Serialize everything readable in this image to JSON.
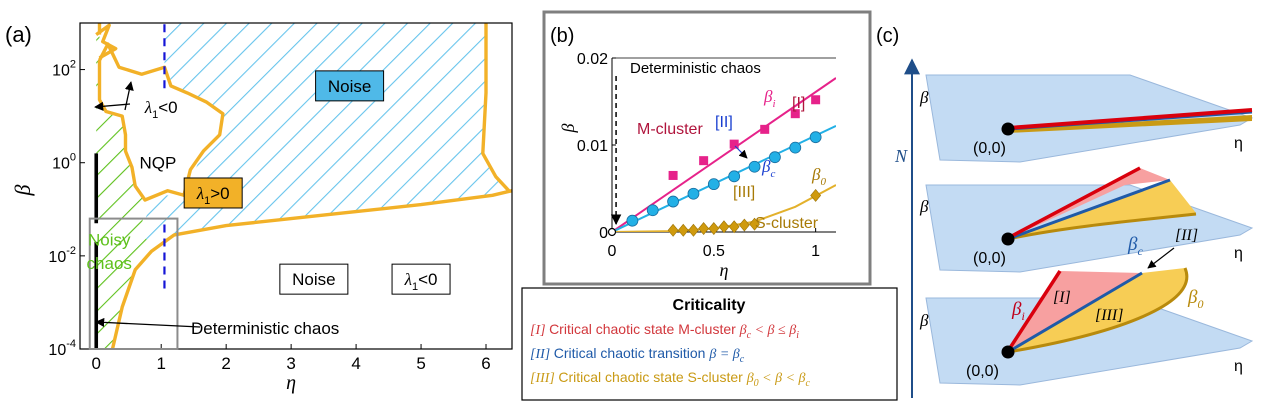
{
  "panel_labels": {
    "a": "(a)",
    "b": "(b)",
    "c": "(c)"
  },
  "colors": {
    "orange": "#f2b128",
    "hatch_green": "#5ec11c",
    "hatch_blue": "#67c4ec",
    "noise_box": "#4fb9e8",
    "lyap_box": "#f2b128",
    "dashed_blue": "#1515d6",
    "magenta": "#e6228a",
    "cyan": "#22b0e6",
    "gold": "#cf9a0e",
    "navy": "#1f5aa8",
    "red": "#d9000d",
    "pink": "#f59a9a",
    "yellow": "#f7cd55",
    "plane": "#c3dbf3",
    "plane_edge": "#9ab8dc",
    "dark_red_text": "#b0143c"
  },
  "chart_data": [
    {
      "id": "a",
      "type": "area",
      "title": "",
      "xlabel": "η",
      "ylabel": "β",
      "xlim": [
        -0.25,
        6.4
      ],
      "ylim_log10": [
        -4,
        3
      ],
      "xticks": [
        {
          "v": 0,
          "label": "0"
        },
        {
          "v": 1,
          "label": "1"
        },
        {
          "v": 2,
          "label": "2"
        },
        {
          "v": 3,
          "label": "3"
        },
        {
          "v": 4,
          "label": "4"
        },
        {
          "v": 5,
          "label": "5"
        },
        {
          "v": 6,
          "label": "6"
        }
      ],
      "yticks": [
        {
          "e": -4,
          "label": "10",
          "exp": "-4"
        },
        {
          "e": -2,
          "label": "10",
          "exp": "-2"
        },
        {
          "e": 0,
          "label": "10",
          "exp": "0"
        },
        {
          "e": 2,
          "label": "10",
          "exp": "2"
        }
      ],
      "deterministic_chaos_segments": [
        {
          "x": 0,
          "from_log": -4,
          "to_log": -1.7
        },
        {
          "x": 0,
          "from_log": -1.3,
          "to_log": 0.2
        }
      ],
      "dashed_line": {
        "x": 1.05,
        "segments": [
          [
            1.6,
            3.0
          ],
          [
            -2.7,
            -1.3
          ]
        ]
      },
      "noisy_chaos_box": {
        "x": [
          -0.1,
          1.25
        ],
        "log": [
          -4,
          -1.2
        ]
      },
      "boundary_curves": [
        {
          "name": "nqp-island",
          "points": [
            [
              0.05,
              2.2
            ],
            [
              0.18,
              2.55
            ],
            [
              0.35,
              2.05
            ],
            [
              0.7,
              1.9
            ],
            [
              1.05,
              2.05
            ],
            [
              1.15,
              1.65
            ],
            [
              1.4,
              1.5
            ],
            [
              1.7,
              1.3
            ],
            [
              1.95,
              1.05
            ],
            [
              1.9,
              0.6
            ],
            [
              1.65,
              0.25
            ],
            [
              1.45,
              -0.15
            ],
            [
              1.35,
              -0.7
            ],
            [
              1.1,
              -0.6
            ],
            [
              0.75,
              -0.8
            ],
            [
              0.6,
              -0.5
            ],
            [
              0.55,
              -0.1
            ],
            [
              0.45,
              0.25
            ],
            [
              0.45,
              0.6
            ],
            [
              0.4,
              1.0
            ],
            [
              0.15,
              1.1
            ],
            [
              0.05,
              1.35
            ],
            [
              0.05,
              1.7
            ],
            [
              0.05,
              2.2
            ]
          ]
        },
        {
          "name": "left-lobe",
          "points": [
            [
              0.0,
              2.75
            ],
            [
              0.2,
              2.95
            ],
            [
              0.1,
              2.6
            ],
            [
              0.3,
              2.45
            ],
            [
              0.05,
              2.25
            ]
          ]
        },
        {
          "name": "main-boundary",
          "points": [
            [
              0.05,
              3.0
            ],
            [
              0.05,
              2.75
            ]
          ]
        },
        {
          "name": "lower-boundary",
          "points": [
            [
              0.25,
              -4.0
            ],
            [
              0.4,
              -3.1
            ],
            [
              0.6,
              -2.3
            ],
            [
              0.85,
              -1.9
            ],
            [
              1.2,
              -1.55
            ],
            [
              2.0,
              -1.35
            ],
            [
              3.0,
              -1.2
            ],
            [
              4.0,
              -1.05
            ],
            [
              5.0,
              -0.9
            ],
            [
              6.1,
              -0.7
            ],
            [
              6.4,
              -0.6
            ]
          ]
        },
        {
          "name": "right-boundary",
          "points": [
            [
              6.0,
              3.0
            ],
            [
              6.0,
              1.5
            ],
            [
              5.95,
              0.2
            ],
            [
              6.15,
              -0.3
            ],
            [
              6.35,
              -0.6
            ]
          ]
        }
      ],
      "region_labels": [
        {
          "text": "NQP",
          "x": 0.95,
          "log": 0.0
        },
        {
          "text": "Noise",
          "x": 3.35,
          "log": -2.5,
          "box": "white"
        },
        {
          "text": "Noise",
          "x": 3.9,
          "log": 1.65,
          "box": "noise"
        },
        {
          "text": "λ1>0",
          "x": 1.8,
          "log": -0.65,
          "box": "lyap"
        },
        {
          "text": "λ1<0",
          "x": 5.0,
          "log": -2.5,
          "box": "white"
        },
        {
          "text": "λ1<0",
          "x": 1.0,
          "log": 1.2
        },
        {
          "text": "Noisy",
          "x": 0.2,
          "log": -1.65,
          "color": "green"
        },
        {
          "text": "chaos",
          "x": 0.2,
          "log": -2.15,
          "color": "green"
        },
        {
          "text": "Deterministic chaos",
          "x": 2.6,
          "log": -3.55
        }
      ]
    },
    {
      "id": "b",
      "type": "scatter",
      "xlabel": "η",
      "ylabel": "β",
      "xlim": [
        0,
        1.1
      ],
      "ylim": [
        0,
        0.02
      ],
      "xticks": [
        {
          "v": 0,
          "label": "0"
        },
        {
          "v": 0.5,
          "label": "0.5"
        },
        {
          "v": 1,
          "label": "1"
        }
      ],
      "yticks": [
        {
          "v": 0,
          "label": "0"
        },
        {
          "v": 0.01,
          "label": "0.01"
        },
        {
          "v": 0.02,
          "label": "0.02"
        }
      ],
      "series": [
        {
          "name": "β_i",
          "marker": "square",
          "x": [
            0.3,
            0.45,
            0.6,
            0.75,
            0.9,
            1.0
          ],
          "y": [
            0.0065,
            0.0082,
            0.0101,
            0.0118,
            0.0136,
            0.0152
          ]
        },
        {
          "name": "β_c",
          "marker": "circle",
          "x": [
            0.1,
            0.2,
            0.3,
            0.4,
            0.5,
            0.6,
            0.7,
            0.8,
            0.9,
            1.0
          ],
          "y": [
            0.0013,
            0.0025,
            0.0035,
            0.0044,
            0.0055,
            0.0064,
            0.0075,
            0.0086,
            0.0097,
            0.0109
          ]
        },
        {
          "name": "β_0",
          "marker": "diamond",
          "x": [
            0.3,
            0.35,
            0.4,
            0.45,
            0.5,
            0.55,
            0.6,
            0.65,
            0.7,
            1.0
          ],
          "y": [
            0.0002,
            0.0002,
            0.0002,
            0.0004,
            0.0004,
            0.0006,
            0.0006,
            0.0008,
            0.0009,
            0.0042
          ]
        }
      ],
      "fits": [
        {
          "name": "fit_i",
          "x": [
            0,
            1.1
          ],
          "y": [
            0.0,
            0.0177
          ]
        },
        {
          "name": "fit_c",
          "x": [
            0,
            1.1
          ],
          "y": [
            0.0,
            0.0122
          ]
        },
        {
          "name": "fit_0",
          "x": [
            0,
            0.3,
            0.5,
            0.7,
            0.9,
            1.1
          ],
          "y": [
            0.0,
            0.0001,
            0.0004,
            0.0012,
            0.0029,
            0.0054
          ]
        }
      ],
      "labels": {
        "deterministic_chaos": "Deterministic chaos",
        "m_cluster": "M-cluster",
        "s_cluster": "S-cluster",
        "I": "[I]",
        "II": "[II]",
        "III": "[III]",
        "beta_i": "β",
        "beta_i_sub": "i",
        "beta_c": "β",
        "beta_c_sub": "c",
        "beta_0": "β",
        "beta_0_sub": "0"
      }
    }
  ],
  "legend": {
    "title": "Criticality",
    "rows": [
      {
        "tag": "[I]",
        "text": "Critical chaotic state M-cluster",
        "cond": "β",
        "cond_sub": "c",
        "cond_rest": " < β ≤ β",
        "cond_sub2": "i",
        "color": "#d2373c"
      },
      {
        "tag": "[II]",
        "text": "Critical chaotic transition",
        "cond": "β = β",
        "cond_sub": "c",
        "cond_rest": "",
        "cond_sub2": "",
        "color": "#1f5aa8"
      },
      {
        "tag": "[III]",
        "text": "Critical chaotic state S-cluster",
        "cond": "β",
        "cond_sub": "0",
        "cond_rest": " < β < β",
        "cond_sub2": "c",
        "color": "#c99a14"
      }
    ]
  },
  "panel_c": {
    "axis_label": "N",
    "beta": "β",
    "eta": "η",
    "origin": "(0,0)",
    "labels": {
      "I": "[I]",
      "II": "[II]",
      "III": "[III]",
      "beta_i": "β",
      "beta_i_sub": "i",
      "beta_c": "β",
      "beta_c_sub": "c",
      "beta_0": "β",
      "beta_0_sub": "0"
    }
  }
}
